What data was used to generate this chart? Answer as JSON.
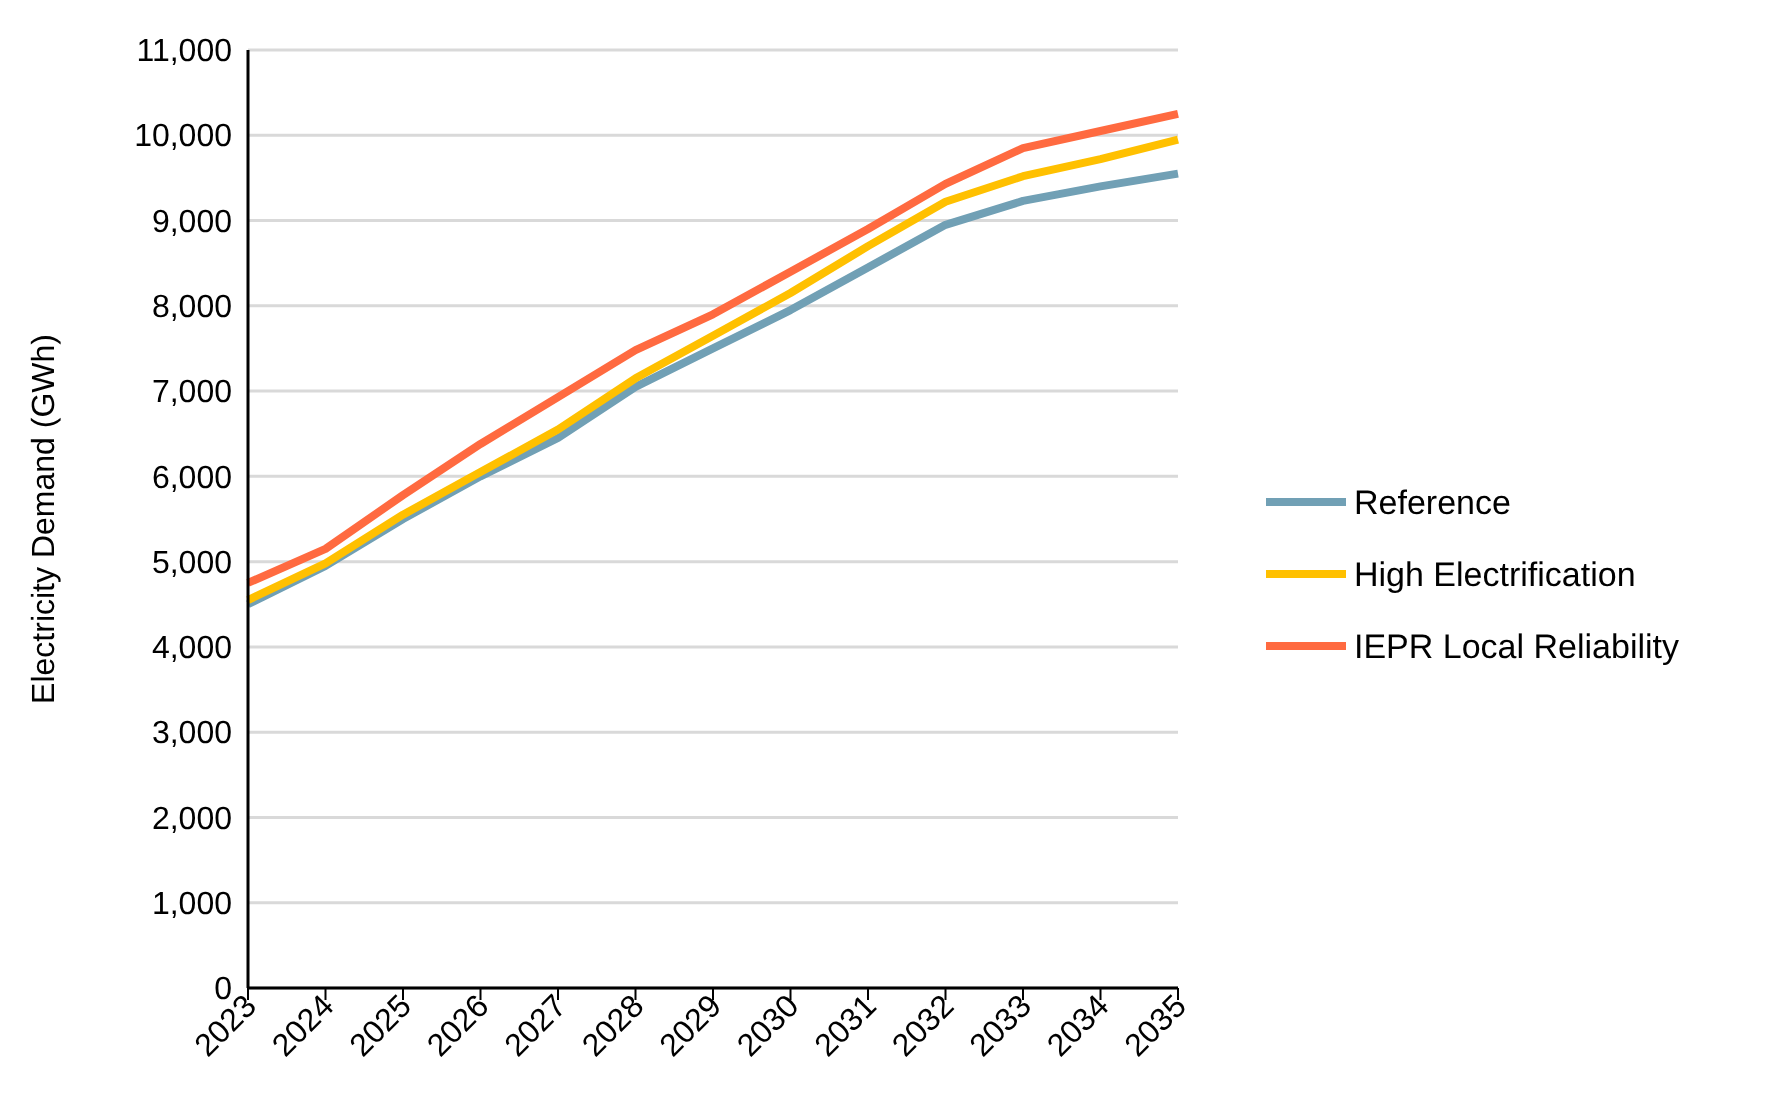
{
  "chart_data": {
    "type": "line",
    "ylabel": "Electricity Demand (GWh)",
    "x": [
      2023,
      2024,
      2025,
      2026,
      2027,
      2028,
      2029,
      2030,
      2031,
      2032,
      2033,
      2034,
      2035
    ],
    "xlim": [
      2023,
      2035
    ],
    "xticks": [
      {
        "value": 2023,
        "label": "2023"
      },
      {
        "value": 2024,
        "label": "2024"
      },
      {
        "value": 2025,
        "label": "2025"
      },
      {
        "value": 2026,
        "label": "2026"
      },
      {
        "value": 2027,
        "label": "2027"
      },
      {
        "value": 2028,
        "label": "2028"
      },
      {
        "value": 2029,
        "label": "2029"
      },
      {
        "value": 2030,
        "label": "2030"
      },
      {
        "value": 2031,
        "label": "2031"
      },
      {
        "value": 2032,
        "label": "2032"
      },
      {
        "value": 2033,
        "label": "2033"
      },
      {
        "value": 2034,
        "label": "2034"
      },
      {
        "value": 2035,
        "label": "2035"
      }
    ],
    "ylim": [
      0,
      11000
    ],
    "yticks": [
      {
        "value": 0,
        "label": "0"
      },
      {
        "value": 1000,
        "label": "1,000"
      },
      {
        "value": 2000,
        "label": "2,000"
      },
      {
        "value": 3000,
        "label": "3,000"
      },
      {
        "value": 4000,
        "label": "4,000"
      },
      {
        "value": 5000,
        "label": "5,000"
      },
      {
        "value": 6000,
        "label": "6,000"
      },
      {
        "value": 7000,
        "label": "7,000"
      },
      {
        "value": 8000,
        "label": "8,000"
      },
      {
        "value": 9000,
        "label": "9,000"
      },
      {
        "value": 10000,
        "label": "10,000"
      },
      {
        "value": 11000,
        "label": "11,000"
      }
    ],
    "grid": "y",
    "legend": "right",
    "marker": "none",
    "line_style": "solid",
    "series": [
      {
        "name": "Reference",
        "color": "#71a0b5",
        "values": [
          4500,
          4950,
          5500,
          6000,
          6450,
          7050,
          7500,
          7950,
          8450,
          8950,
          9230,
          9400,
          9550
        ]
      },
      {
        "name": "High Electrification",
        "color": "#ffc000",
        "values": [
          4550,
          4980,
          5550,
          6050,
          6550,
          7150,
          7650,
          8150,
          8700,
          9220,
          9520,
          9720,
          9950
        ]
      },
      {
        "name": "IEPR Local Reliability",
        "color": "#ff6a40",
        "values": [
          4750,
          5150,
          5780,
          6380,
          6930,
          7480,
          7900,
          8400,
          8900,
          9430,
          9850,
          10050,
          10250
        ]
      }
    ]
  }
}
